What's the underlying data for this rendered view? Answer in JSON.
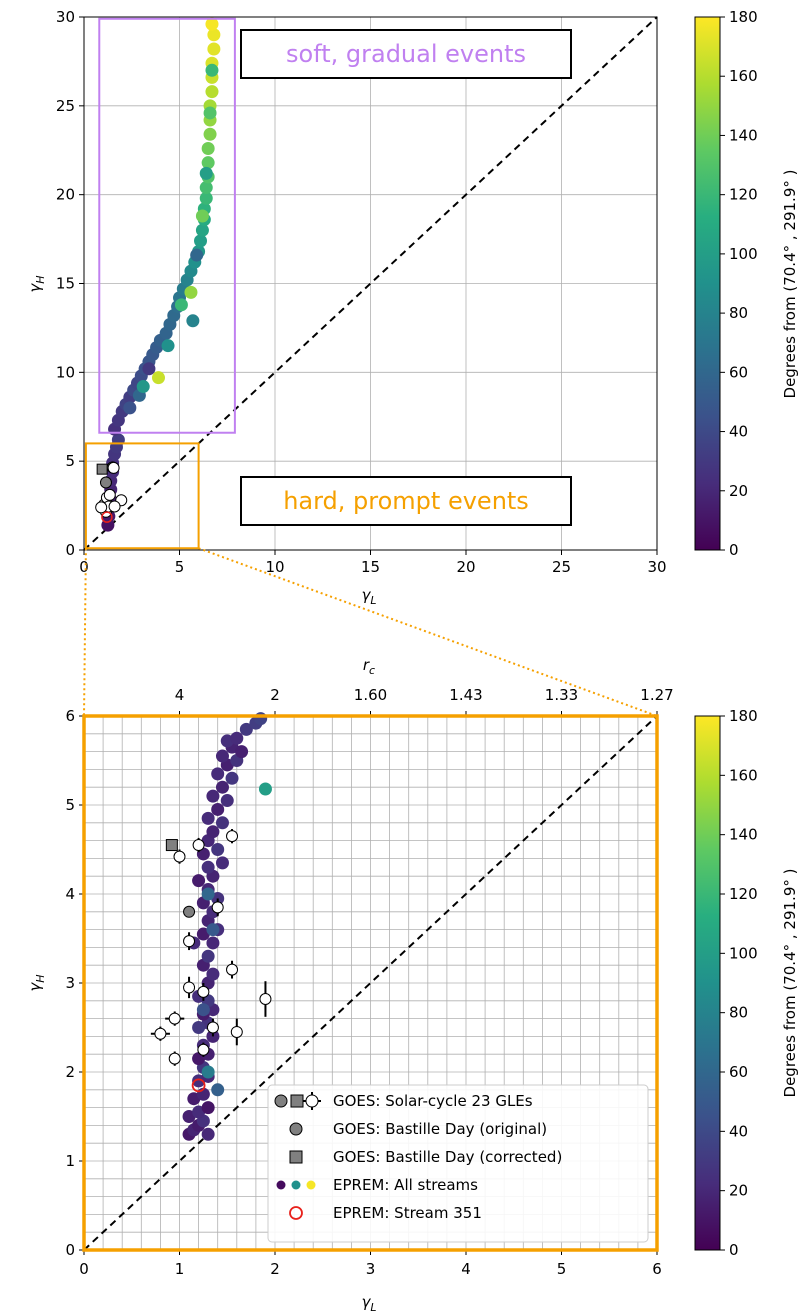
{
  "chart_data": [
    {
      "type": "scatter",
      "id": "overview",
      "xlabel": "γL",
      "ylabel": "γH",
      "xlim": [
        0,
        30
      ],
      "ylim": [
        0,
        30
      ],
      "xticks": [
        "0",
        "5",
        "10",
        "15",
        "20",
        "25",
        "30"
      ],
      "yticks": [
        "0",
        "5",
        "10",
        "15",
        "20",
        "25",
        "30"
      ],
      "grid": true,
      "colorbar": {
        "label": "Degrees from (70.4° , 291.9° )",
        "range": [
          0,
          180
        ],
        "ticks": [
          "0",
          "20",
          "40",
          "60",
          "80",
          "100",
          "120",
          "140",
          "160",
          "180"
        ]
      },
      "annotations": [
        {
          "text": "soft, gradual events",
          "color": "#c080f0",
          "box_x": [
            0.8,
            7.9
          ],
          "box_y": [
            6.6,
            29.9
          ]
        },
        {
          "text": "hard, prompt events",
          "color": "#f5a000",
          "box_x": [
            0.1,
            6.0
          ],
          "box_y": [
            0.1,
            6.0
          ]
        }
      ],
      "reference_line": {
        "style": "dashed",
        "from": [
          0,
          0
        ],
        "to": [
          30,
          30
        ]
      },
      "series": [
        {
          "points": [
            [
              1.25,
              1.4,
              8
            ],
            [
              1.3,
              1.9,
              12
            ],
            [
              1.3,
              2.4,
              14
            ],
            [
              1.35,
              2.9,
              16
            ],
            [
              1.4,
              3.4,
              18
            ],
            [
              1.4,
              3.9,
              20
            ],
            [
              1.5,
              4.4,
              22
            ],
            [
              1.5,
              4.9,
              25
            ],
            [
              1.6,
              5.4,
              28
            ],
            [
              1.7,
              5.8,
              30
            ],
            [
              1.8,
              6.2,
              32
            ],
            [
              1.6,
              6.8,
              25
            ],
            [
              1.8,
              7.3,
              28
            ],
            [
              2.0,
              7.8,
              30
            ],
            [
              2.2,
              8.2,
              35
            ],
            [
              2.4,
              8.6,
              32
            ],
            [
              2.6,
              9.0,
              40
            ],
            [
              2.8,
              9.4,
              38
            ],
            [
              3.0,
              9.8,
              42
            ],
            [
              3.2,
              10.2,
              45
            ],
            [
              3.4,
              10.6,
              48
            ],
            [
              3.6,
              11.0,
              50
            ],
            [
              3.8,
              11.4,
              52
            ],
            [
              4.0,
              11.8,
              55
            ],
            [
              4.3,
              12.2,
              58
            ],
            [
              4.5,
              12.7,
              60
            ],
            [
              4.7,
              13.2,
              62
            ],
            [
              4.9,
              13.7,
              65
            ],
            [
              5.0,
              14.2,
              70
            ],
            [
              5.2,
              14.7,
              75
            ],
            [
              5.4,
              15.2,
              80
            ],
            [
              5.6,
              15.7,
              85
            ],
            [
              5.8,
              16.2,
              90
            ],
            [
              6.0,
              16.8,
              95
            ],
            [
              6.1,
              17.4,
              100
            ],
            [
              6.2,
              18.0,
              105
            ],
            [
              6.3,
              18.6,
              110
            ],
            [
              6.3,
              19.2,
              115
            ],
            [
              6.4,
              19.8,
              120
            ],
            [
              6.4,
              20.4,
              125
            ],
            [
              6.5,
              21.0,
              130
            ],
            [
              6.5,
              21.8,
              135
            ],
            [
              6.5,
              22.6,
              140
            ],
            [
              6.6,
              23.4,
              145
            ],
            [
              6.6,
              24.2,
              150
            ],
            [
              6.6,
              25.0,
              155
            ],
            [
              6.7,
              25.8,
              160
            ],
            [
              6.7,
              26.6,
              165
            ],
            [
              6.7,
              27.4,
              170
            ],
            [
              6.8,
              28.2,
              172
            ],
            [
              6.8,
              29.0,
              175
            ],
            [
              6.7,
              29.6,
              178
            ],
            [
              2.4,
              8.0,
              45
            ],
            [
              3.4,
              10.2,
              30
            ],
            [
              3.9,
              9.7,
              165
            ],
            [
              5.6,
              14.5,
              150
            ],
            [
              4.4,
              11.5,
              90
            ],
            [
              2.9,
              8.7,
              60
            ],
            [
              3.1,
              9.2,
              95
            ],
            [
              5.1,
              13.8,
              120
            ],
            [
              5.9,
              16.6,
              60
            ],
            [
              6.2,
              18.8,
              140
            ],
            [
              6.4,
              21.2,
              100
            ],
            [
              6.6,
              24.6,
              130
            ],
            [
              6.7,
              27.0,
              120
            ],
            [
              5.7,
              12.9,
              80
            ]
          ]
        },
        {
          "name": "GOES: Solar-cycle 23 GLEs",
          "points": [
            [
              1.5,
              4.65
            ],
            [
              1.55,
              4.62
            ],
            [
              1.05,
              2.55
            ],
            [
              1.2,
              2.95
            ],
            [
              1.15,
              2.15
            ],
            [
              1.3,
              2.45
            ],
            [
              1.95,
              2.8
            ],
            [
              1.35,
              3.1
            ],
            [
              0.9,
              2.4
            ],
            [
              1.6,
              2.45
            ]
          ]
        },
        {
          "name": "GOES: Bastille Day (original)",
          "points": [
            [
              1.15,
              3.8
            ]
          ]
        },
        {
          "name": "GOES: Bastille Day (corrected)",
          "points": [
            [
              0.95,
              4.55
            ]
          ]
        },
        {
          "name": "EPREM: Stream 351",
          "points": [
            [
              1.2,
              1.85
            ]
          ]
        }
      ]
    },
    {
      "type": "scatter",
      "id": "zoom",
      "xlabel": "γL",
      "ylabel": "γH",
      "x2label": "rc",
      "xlim": [
        0,
        6
      ],
      "ylim": [
        0,
        6
      ],
      "xticks": [
        "0",
        "1",
        "2",
        "3",
        "4",
        "5",
        "6"
      ],
      "yticks": [
        "0",
        "1",
        "2",
        "3",
        "4",
        "5",
        "6"
      ],
      "x2ticks": [
        {
          "label": "4",
          "x": 1.0
        },
        {
          "label": "2",
          "x": 2.0
        },
        {
          "label": "1.60",
          "x": 3.0
        },
        {
          "label": "1.43",
          "x": 4.0
        },
        {
          "label": "1.33",
          "x": 5.0
        },
        {
          "label": "1.27",
          "x": 6.0
        }
      ],
      "grid": true,
      "colorbar": {
        "label": "Degrees from (70.4° , 291.9° )",
        "range": [
          0,
          180
        ],
        "ticks": [
          "0",
          "20",
          "40",
          "60",
          "80",
          "100",
          "120",
          "140",
          "160",
          "180"
        ]
      },
      "reference_line": {
        "style": "dashed",
        "from": [
          0,
          0
        ],
        "to": [
          6,
          6
        ]
      },
      "legend": {
        "placement": "lower-right",
        "entries": [
          "GOES: Solar-cycle 23 GLEs",
          "GOES: Bastille Day (original)",
          "GOES: Bastille Day (corrected)",
          "EPREM: All streams",
          "EPREM: Stream 351"
        ]
      },
      "series": [
        {
          "name": "EPREM: All streams",
          "points": [
            [
              1.1,
              1.3,
              12
            ],
            [
              1.15,
              1.35,
              18
            ],
            [
              1.2,
              1.4,
              14
            ],
            [
              1.3,
              1.3,
              20
            ],
            [
              1.25,
              1.45,
              25
            ],
            [
              1.1,
              1.5,
              16
            ],
            [
              1.2,
              1.55,
              22
            ],
            [
              1.3,
              1.6,
              10
            ],
            [
              1.15,
              1.7,
              14
            ],
            [
              1.25,
              1.75,
              18
            ],
            [
              1.2,
              1.9,
              24
            ],
            [
              1.3,
              1.95,
              20
            ],
            [
              1.25,
              2.05,
              28
            ],
            [
              1.2,
              2.15,
              12
            ],
            [
              1.3,
              2.2,
              16
            ],
            [
              1.25,
              2.3,
              22
            ],
            [
              1.35,
              2.4,
              18
            ],
            [
              1.3,
              2.55,
              26
            ],
            [
              1.25,
              2.65,
              14
            ],
            [
              1.35,
              2.7,
              20
            ],
            [
              1.3,
              2.8,
              30
            ],
            [
              1.2,
              2.85,
              24
            ],
            [
              1.3,
              3.0,
              18
            ],
            [
              1.35,
              3.1,
              22
            ],
            [
              1.25,
              3.2,
              16
            ],
            [
              1.3,
              3.3,
              28
            ],
            [
              1.35,
              3.45,
              20
            ],
            [
              1.25,
              3.55,
              14
            ],
            [
              1.4,
              3.6,
              24
            ],
            [
              1.3,
              3.7,
              18
            ],
            [
              1.35,
              3.8,
              22
            ],
            [
              1.25,
              3.9,
              16
            ],
            [
              1.4,
              3.95,
              26
            ],
            [
              1.3,
              4.05,
              20
            ],
            [
              1.2,
              4.15,
              14
            ],
            [
              1.35,
              4.2,
              18
            ],
            [
              1.3,
              4.3,
              24
            ],
            [
              1.45,
              4.35,
              22
            ],
            [
              1.25,
              4.45,
              16
            ],
            [
              1.4,
              4.5,
              28
            ],
            [
              1.3,
              4.6,
              20
            ],
            [
              1.35,
              4.7,
              18
            ],
            [
              1.45,
              4.8,
              26
            ],
            [
              1.3,
              4.85,
              22
            ],
            [
              1.4,
              4.95,
              16
            ],
            [
              1.5,
              5.05,
              24
            ],
            [
              1.35,
              5.1,
              20
            ],
            [
              1.45,
              5.2,
              18
            ],
            [
              1.55,
              5.3,
              28
            ],
            [
              1.4,
              5.35,
              22
            ],
            [
              1.5,
              5.45,
              16
            ],
            [
              1.6,
              5.5,
              26
            ],
            [
              1.45,
              5.55,
              20
            ],
            [
              1.55,
              5.65,
              18
            ],
            [
              1.5,
              5.72,
              24
            ],
            [
              1.6,
              5.75,
              22
            ],
            [
              1.7,
              5.85,
              30
            ],
            [
              1.8,
              5.92,
              32
            ],
            [
              1.85,
              5.97,
              35
            ],
            [
              1.65,
              5.6,
              16
            ],
            [
              1.2,
              2.5,
              30
            ],
            [
              1.15,
              3.45,
              22
            ],
            [
              1.4,
              1.8,
              55
            ],
            [
              1.9,
              5.18,
              100
            ],
            [
              1.3,
              2.0,
              75
            ],
            [
              1.3,
              4.0,
              60
            ],
            [
              1.25,
              2.7,
              45
            ],
            [
              1.35,
              3.6,
              50
            ]
          ]
        },
        {
          "name": "GOES: Solar-cycle 23 GLEs",
          "points": [
            [
              1.0,
              4.42,
              0.05,
              0.08
            ],
            [
              1.2,
              4.55,
              0.05,
              0.08
            ],
            [
              1.55,
              4.65,
              0.05,
              0.08
            ],
            [
              1.4,
              3.85,
              0.05,
              0.1
            ],
            [
              1.1,
              3.47,
              0.05,
              0.1
            ],
            [
              1.1,
              2.95,
              0.05,
              0.12
            ],
            [
              1.25,
              2.9,
              0.05,
              0.1
            ],
            [
              1.55,
              3.15,
              0.05,
              0.1
            ],
            [
              1.9,
              2.82,
              0.05,
              0.2
            ],
            [
              0.95,
              2.6,
              0.1,
              0.08
            ],
            [
              0.8,
              2.43,
              0.1,
              0.08
            ],
            [
              1.35,
              2.5,
              0.05,
              0.1
            ],
            [
              1.6,
              2.45,
              0.05,
              0.15
            ],
            [
              0.95,
              2.15,
              0.05,
              0.08
            ],
            [
              1.25,
              2.25,
              0.05,
              0.08
            ]
          ]
        },
        {
          "name": "GOES: Bastille Day (original)",
          "points": [
            [
              1.1,
              3.8
            ]
          ]
        },
        {
          "name": "GOES: Bastille Day (corrected)",
          "points": [
            [
              0.92,
              4.55
            ]
          ]
        },
        {
          "name": "EPREM: Stream 351",
          "points": [
            [
              1.2,
              1.85
            ]
          ]
        }
      ]
    }
  ],
  "colors": {
    "soft_box": "#c080f0",
    "hard_box": "#f5a000",
    "zoom_frame": "#f5a000",
    "grid": "#b0b0b0",
    "stream351": "#e8201a",
    "bastille": "#808080"
  }
}
